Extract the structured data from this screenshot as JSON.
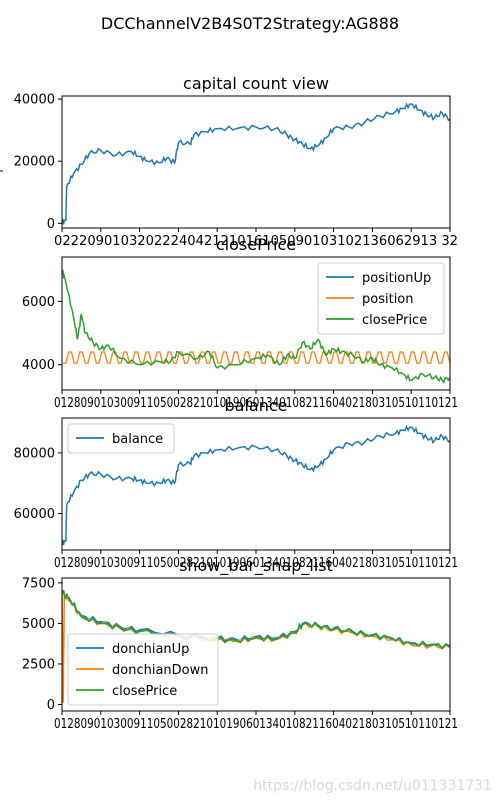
{
  "suptitle": "DCChannelV2B4S0T2Strategy:AG888",
  "watermark": "https://blog.csdn.net/u011331731",
  "colors": {
    "blue": "#1f77b4",
    "orange": "#ff7f0e",
    "green": "#2ca02c"
  },
  "chart_data": [
    {
      "type": "line",
      "title": "capital count view",
      "ylim": [
        -1500,
        41000
      ],
      "yticks": [
        0,
        20000,
        40000
      ],
      "ytick_labels": [
        "0",
        "20000",
        "40000"
      ],
      "ylabel": "",
      "xtick_label": "0222090103202224042121016105090103102136062913 32",
      "legend": null,
      "series": [
        {
          "name": "",
          "color": "#1f77b4",
          "points": [
            [
              0,
              0
            ],
            [
              0.01,
              1000
            ],
            [
              0.012,
              12000
            ],
            [
              0.03,
              16000
            ],
            [
              0.05,
              19000
            ],
            [
              0.07,
              22500
            ],
            [
              0.1,
              23500
            ],
            [
              0.14,
              22000
            ],
            [
              0.18,
              23000
            ],
            [
              0.2,
              21500
            ],
            [
              0.22,
              20000
            ],
            [
              0.25,
              19500
            ],
            [
              0.27,
              21000
            ],
            [
              0.29,
              19500
            ],
            [
              0.3,
              26000
            ],
            [
              0.33,
              25500
            ],
            [
              0.34,
              28500
            ],
            [
              0.37,
              29500
            ],
            [
              0.4,
              30500
            ],
            [
              0.45,
              30500
            ],
            [
              0.5,
              31000
            ],
            [
              0.55,
              30500
            ],
            [
              0.58,
              28500
            ],
            [
              0.6,
              27000
            ],
            [
              0.62,
              25500
            ],
            [
              0.64,
              24000
            ],
            [
              0.66,
              25000
            ],
            [
              0.68,
              27500
            ],
            [
              0.7,
              30500
            ],
            [
              0.74,
              31000
            ],
            [
              0.78,
              32500
            ],
            [
              0.82,
              34500
            ],
            [
              0.86,
              36000
            ],
            [
              0.88,
              37000
            ],
            [
              0.9,
              38500
            ],
            [
              0.92,
              36500
            ],
            [
              0.94,
              35000
            ],
            [
              0.96,
              34000
            ],
            [
              0.98,
              35500
            ],
            [
              1.0,
              33500
            ]
          ]
        }
      ]
    },
    {
      "type": "line",
      "title": "closePrice",
      "ylim": [
        3200,
        7400
      ],
      "yticks": [
        4000,
        6000
      ],
      "ytick_labels": [
        "4000",
        "6000"
      ],
      "xtick_label": "0128090103009110500282101019060134010821160402180310510110121",
      "legend": {
        "position": "top-right"
      },
      "series": [
        {
          "name": "positionUp",
          "color": "#1f77b4",
          "points": []
        },
        {
          "name": "position",
          "color": "#ff7f0e",
          "band": [
            4050,
            4400
          ]
        },
        {
          "name": "closePrice",
          "color": "#2ca02c",
          "points": [
            [
              0,
              7000
            ],
            [
              0.01,
              6600
            ],
            [
              0.03,
              5500
            ],
            [
              0.04,
              4800
            ],
            [
              0.05,
              5600
            ],
            [
              0.06,
              5000
            ],
            [
              0.08,
              4700
            ],
            [
              0.1,
              4500
            ],
            [
              0.12,
              4600
            ],
            [
              0.15,
              4200
            ],
            [
              0.2,
              4000
            ],
            [
              0.25,
              4100
            ],
            [
              0.28,
              4100
            ],
            [
              0.3,
              4400
            ],
            [
              0.35,
              4200
            ],
            [
              0.38,
              4400
            ],
            [
              0.4,
              3900
            ],
            [
              0.45,
              4000
            ],
            [
              0.5,
              4200
            ],
            [
              0.53,
              4300
            ],
            [
              0.56,
              4000
            ],
            [
              0.58,
              4300
            ],
            [
              0.6,
              4200
            ],
            [
              0.62,
              4700
            ],
            [
              0.64,
              4500
            ],
            [
              0.66,
              4800
            ],
            [
              0.68,
              4300
            ],
            [
              0.7,
              4500
            ],
            [
              0.72,
              4400
            ],
            [
              0.75,
              4300
            ],
            [
              0.78,
              4100
            ],
            [
              0.8,
              4200
            ],
            [
              0.82,
              4000
            ],
            [
              0.85,
              3900
            ],
            [
              0.88,
              3700
            ],
            [
              0.9,
              3500
            ],
            [
              0.93,
              3700
            ],
            [
              0.96,
              3600
            ],
            [
              0.98,
              3500
            ],
            [
              1.0,
              3600
            ]
          ]
        }
      ]
    },
    {
      "type": "line",
      "title": "balance",
      "ylim": [
        48000,
        91500
      ],
      "yticks": [
        60000,
        80000
      ],
      "ytick_labels": [
        "60000",
        "80000"
      ],
      "xtick_label": "0128090103009110500282101019060134010821160402180310510110121",
      "legend": {
        "position": "top-left"
      },
      "series": [
        {
          "name": "balance",
          "color": "#1f77b4",
          "points": [
            [
              0,
              50000
            ],
            [
              0.01,
              51000
            ],
            [
              0.012,
              63000
            ],
            [
              0.03,
              67000
            ],
            [
              0.05,
              71000
            ],
            [
              0.07,
              73000
            ],
            [
              0.1,
              73000
            ],
            [
              0.14,
              71500
            ],
            [
              0.18,
              71500
            ],
            [
              0.2,
              71000
            ],
            [
              0.22,
              70000
            ],
            [
              0.25,
              70000
            ],
            [
              0.27,
              71000
            ],
            [
              0.29,
              70000
            ],
            [
              0.3,
              76000
            ],
            [
              0.33,
              76500
            ],
            [
              0.34,
              79000
            ],
            [
              0.37,
              80000
            ],
            [
              0.4,
              81000
            ],
            [
              0.45,
              81500
            ],
            [
              0.5,
              82000
            ],
            [
              0.55,
              81000
            ],
            [
              0.58,
              79000
            ],
            [
              0.6,
              77500
            ],
            [
              0.62,
              76000
            ],
            [
              0.64,
              74500
            ],
            [
              0.66,
              75500
            ],
            [
              0.68,
              78000
            ],
            [
              0.7,
              81000
            ],
            [
              0.74,
              83000
            ],
            [
              0.78,
              83500
            ],
            [
              0.82,
              85500
            ],
            [
              0.86,
              86500
            ],
            [
              0.88,
              87500
            ],
            [
              0.9,
              88500
            ],
            [
              0.92,
              86500
            ],
            [
              0.94,
              85000
            ],
            [
              0.96,
              84000
            ],
            [
              0.98,
              85500
            ],
            [
              1.0,
              84000
            ]
          ]
        }
      ]
    },
    {
      "type": "line",
      "title": "show_bar_snap_list",
      "ylim": [
        -400,
        7800
      ],
      "yticks": [
        0,
        2500,
        5000,
        7500
      ],
      "ytick_labels": [
        "0",
        "2500",
        "5000",
        "7500"
      ],
      "xtick_label": "0128090103009110500282101019060134010821160402180310510110121",
      "legend": {
        "position": "bottom-left"
      },
      "series": [
        {
          "name": "donchianUp",
          "color": "#1f77b4",
          "points": [
            [
              0,
              7000
            ],
            [
              0.02,
              6500
            ],
            [
              0.05,
              5500
            ],
            [
              0.1,
              5100
            ],
            [
              0.15,
              4800
            ],
            [
              0.2,
              4600
            ],
            [
              0.3,
              4300
            ],
            [
              0.4,
              4100
            ],
            [
              0.45,
              4000
            ],
            [
              0.5,
              4200
            ],
            [
              0.55,
              4100
            ],
            [
              0.6,
              4500
            ],
            [
              0.62,
              5000
            ],
            [
              0.66,
              4900
            ],
            [
              0.7,
              4700
            ],
            [
              0.75,
              4500
            ],
            [
              0.8,
              4300
            ],
            [
              0.85,
              4100
            ],
            [
              0.9,
              3800
            ],
            [
              0.95,
              3700
            ],
            [
              1.0,
              3600
            ]
          ]
        },
        {
          "name": "donchianDown",
          "color": "#ff7f0e",
          "points": [
            [
              0,
              7000
            ],
            [
              0.003,
              100
            ],
            [
              0.006,
              6800
            ],
            [
              0.02,
              6400
            ],
            [
              0.05,
              5400
            ],
            [
              0.1,
              5000
            ],
            [
              0.15,
              4700
            ],
            [
              0.2,
              4500
            ],
            [
              0.3,
              4200
            ],
            [
              0.4,
              4000
            ],
            [
              0.45,
              3900
            ],
            [
              0.5,
              4100
            ],
            [
              0.55,
              4000
            ],
            [
              0.6,
              4400
            ],
            [
              0.62,
              4900
            ],
            [
              0.66,
              4800
            ],
            [
              0.7,
              4600
            ],
            [
              0.75,
              4400
            ],
            [
              0.8,
              4200
            ],
            [
              0.85,
              4000
            ],
            [
              0.9,
              3700
            ],
            [
              0.95,
              3600
            ],
            [
              1.0,
              3500
            ]
          ]
        },
        {
          "name": "closePrice",
          "color": "#2ca02c",
          "points": [
            [
              0,
              6900
            ],
            [
              0.02,
              6400
            ],
            [
              0.05,
              5400
            ],
            [
              0.1,
              5000
            ],
            [
              0.15,
              4700
            ],
            [
              0.2,
              4500
            ],
            [
              0.3,
              4200
            ],
            [
              0.4,
              4000
            ],
            [
              0.45,
              3900
            ],
            [
              0.5,
              4100
            ],
            [
              0.55,
              4000
            ],
            [
              0.6,
              4400
            ],
            [
              0.62,
              4950
            ],
            [
              0.66,
              4850
            ],
            [
              0.7,
              4650
            ],
            [
              0.75,
              4450
            ],
            [
              0.8,
              4250
            ],
            [
              0.85,
              4050
            ],
            [
              0.9,
              3750
            ],
            [
              0.95,
              3650
            ],
            [
              1.0,
              3550
            ]
          ]
        }
      ]
    }
  ]
}
